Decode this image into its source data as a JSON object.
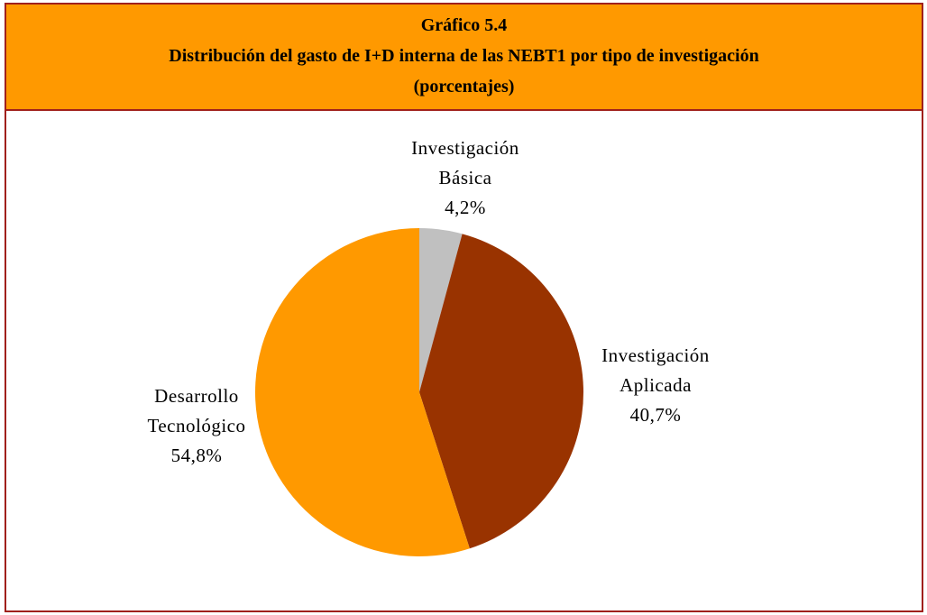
{
  "chart_data": {
    "type": "pie",
    "title": "Gráfico 5.4",
    "subtitle": "Distribución del gasto de I+D interna de las NEBT1 por tipo de investigación",
    "note": "(porcentajes)",
    "categories": [
      "Investigación Básica",
      "Investigación Aplicada",
      "Desarrollo Tecnológico"
    ],
    "values": [
      4.2,
      40.7,
      54.8
    ],
    "value_labels": [
      "4,2%",
      "40,7%",
      "54,8%"
    ],
    "colors": [
      "#C0C0C0",
      "#993300",
      "#FF9900"
    ]
  }
}
